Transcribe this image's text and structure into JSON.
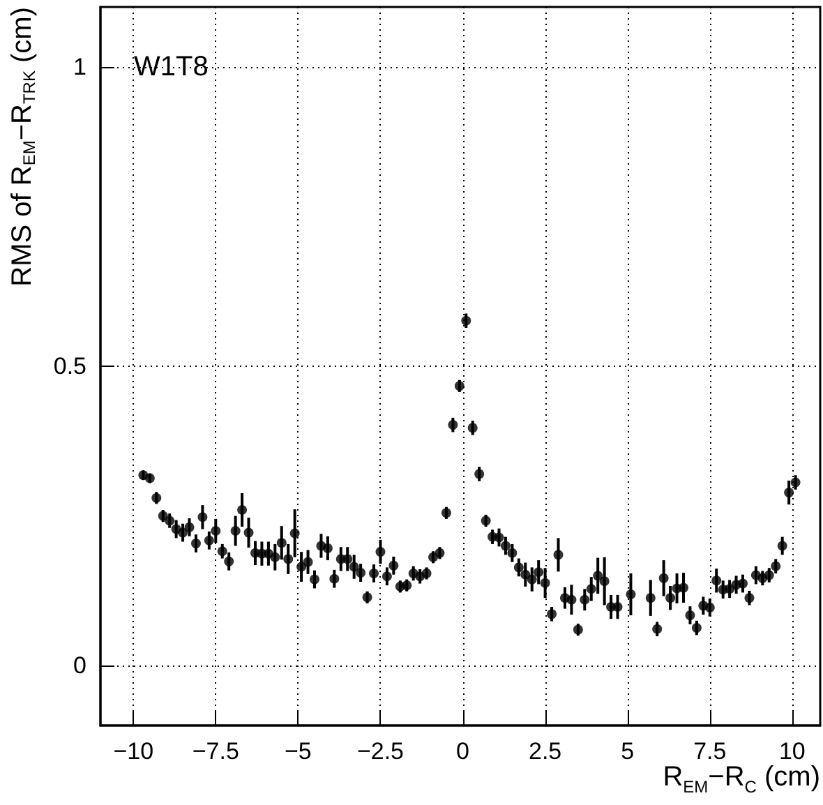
{
  "chart_data": {
    "type": "scatter",
    "xlabel": "R$_{EM}$−R$_{C}$ (cm)",
    "ylabel": "RMS of R$_{EM}$−R$_{TRK}$ (cm)",
    "annotations": [
      "W1T8"
    ],
    "x": [
      -9.7,
      -9.5,
      -9.3,
      -9.1,
      -8.9,
      -8.7,
      -8.5,
      -8.3,
      -8.1,
      -7.9,
      -7.7,
      -7.5,
      -7.3,
      -7.1,
      -6.9,
      -6.7,
      -6.5,
      -6.3,
      -6.1,
      -5.9,
      -5.7,
      -5.5,
      -5.3,
      -5.1,
      -4.9,
      -4.7,
      -4.5,
      -4.3,
      -4.1,
      -3.9,
      -3.7,
      -3.5,
      -3.3,
      -3.1,
      -2.9,
      -2.7,
      -2.5,
      -2.3,
      -2.1,
      -1.9,
      -1.7,
      -1.5,
      -1.3,
      -1.1,
      -0.9,
      -0.7,
      -0.5,
      -0.3,
      -0.1,
      0.1,
      0.3,
      0.5,
      0.7,
      0.9,
      1.1,
      1.3,
      1.5,
      1.7,
      1.9,
      2.1,
      2.3,
      2.5,
      2.7,
      2.9,
      3.1,
      3.3,
      3.5,
      3.7,
      3.9,
      4.1,
      4.3,
      4.5,
      4.7,
      5.1,
      5.7,
      5.9,
      6.1,
      6.3,
      6.5,
      6.7,
      6.9,
      7.1,
      7.3,
      7.5,
      7.7,
      7.9,
      8.1,
      8.3,
      8.5,
      8.7,
      8.9,
      9.1,
      9.3,
      9.5,
      9.7,
      9.9,
      10.1
    ],
    "values": [
      0.318,
      0.313,
      0.28,
      0.25,
      0.242,
      0.228,
      0.222,
      0.231,
      0.204,
      0.248,
      0.209,
      0.225,
      0.191,
      0.174,
      0.225,
      0.26,
      0.222,
      0.188,
      0.187,
      0.187,
      0.181,
      0.205,
      0.178,
      0.221,
      0.165,
      0.173,
      0.144,
      0.2,
      0.196,
      0.145,
      0.178,
      0.178,
      0.165,
      0.155,
      0.114,
      0.154,
      0.19,
      0.149,
      0.167,
      0.132,
      0.134,
      0.154,
      0.149,
      0.154,
      0.181,
      0.188,
      0.255,
      0.402,
      0.467,
      0.576,
      0.397,
      0.32,
      0.242,
      0.215,
      0.214,
      0.2,
      0.188,
      0.164,
      0.152,
      0.144,
      0.156,
      0.138,
      0.086,
      0.185,
      0.113,
      0.11,
      0.06,
      0.11,
      0.128,
      0.15,
      0.141,
      0.098,
      0.098,
      0.119,
      0.113,
      0.061,
      0.146,
      0.113,
      0.129,
      0.13,
      0.084,
      0.063,
      0.1,
      0.097,
      0.142,
      0.127,
      0.128,
      0.135,
      0.137,
      0.113,
      0.151,
      0.146,
      0.151,
      0.166,
      0.2,
      0.289,
      0.306
    ],
    "errors": [
      0.008,
      0.008,
      0.01,
      0.01,
      0.012,
      0.015,
      0.015,
      0.015,
      0.015,
      0.02,
      0.015,
      0.02,
      0.012,
      0.015,
      0.025,
      0.028,
      0.025,
      0.02,
      0.02,
      0.02,
      0.022,
      0.028,
      0.025,
      0.04,
      0.025,
      0.02,
      0.015,
      0.02,
      0.02,
      0.015,
      0.02,
      0.02,
      0.02,
      0.015,
      0.01,
      0.015,
      0.02,
      0.015,
      0.015,
      0.01,
      0.01,
      0.012,
      0.012,
      0.01,
      0.01,
      0.01,
      0.01,
      0.012,
      0.01,
      0.012,
      0.012,
      0.012,
      0.01,
      0.012,
      0.015,
      0.015,
      0.015,
      0.015,
      0.02,
      0.02,
      0.02,
      0.025,
      0.012,
      0.028,
      0.018,
      0.025,
      0.01,
      0.018,
      0.02,
      0.03,
      0.04,
      0.02,
      0.02,
      0.035,
      0.03,
      0.012,
      0.03,
      0.02,
      0.025,
      0.025,
      0.015,
      0.012,
      0.015,
      0.015,
      0.02,
      0.015,
      0.015,
      0.015,
      0.015,
      0.012,
      0.015,
      0.012,
      0.012,
      0.012,
      0.015,
      0.02,
      0.012
    ],
    "color": "#000000",
    "marker": "circle",
    "xlim": [
      -11,
      10.85
    ],
    "ylim": [
      -0.1,
      1.1
    ],
    "xticks": [
      {
        "value": -10,
        "label": "−10"
      },
      {
        "value": -7.5,
        "label": "−7.5"
      },
      {
        "value": -5,
        "label": "−5"
      },
      {
        "value": -2.5,
        "label": "−2.5"
      },
      0,
      2.5,
      5,
      7.5,
      10
    ],
    "yticks": [
      0,
      0.5,
      1
    ],
    "grid": true
  }
}
